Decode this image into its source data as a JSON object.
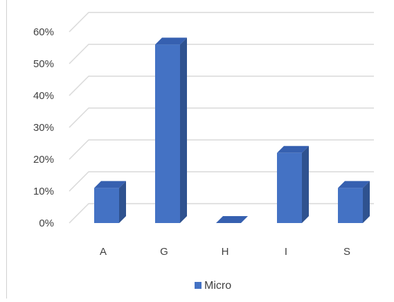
{
  "chart_data": {
    "type": "bar",
    "style": "3d-column",
    "title": "",
    "xlabel": "",
    "ylabel": "",
    "categories": [
      "A",
      "G",
      "H",
      "I",
      "S"
    ],
    "series": [
      {
        "name": "Micro",
        "values": [
          11,
          56,
          0,
          22,
          11
        ]
      }
    ],
    "y_ticks": [
      "0%",
      "10%",
      "20%",
      "30%",
      "40%",
      "50%",
      "60%"
    ],
    "ylim": [
      0,
      60
    ],
    "grid": true,
    "legend": "bottom",
    "colors": {
      "bar_front": "#4472c4",
      "bar_side": "#2f528f",
      "bar_top": "#3660b0",
      "grid": "#d9d9d9",
      "axis_text": "#404040"
    }
  }
}
